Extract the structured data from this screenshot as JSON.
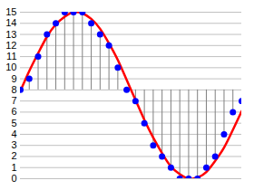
{
  "chart_data": {
    "type": "line",
    "x": [
      0,
      1,
      2,
      3,
      4,
      5,
      6,
      7,
      8,
      9,
      10,
      11,
      12,
      13,
      14,
      15,
      16,
      17,
      18,
      19,
      20,
      21,
      22,
      23,
      24,
      25
    ],
    "series": [
      {
        "type": "line",
        "color": "#ff0000",
        "values": [
          7.9,
          9.7,
          11.3,
          12.8,
          13.9,
          14.6,
          15.0,
          14.9,
          14.4,
          13.5,
          12.2,
          10.7,
          8.9,
          7.1,
          5.3,
          3.7,
          2.3,
          1.1,
          0.4,
          0.0,
          0.1,
          0.6,
          1.6,
          2.8,
          4.4,
          6.1
        ]
      },
      {
        "type": "scatter",
        "color": "#0000ff",
        "marker": "circle",
        "values": [
          8,
          9,
          11,
          13,
          14,
          15,
          15,
          15,
          14,
          13,
          12,
          10,
          8,
          7,
          5,
          3,
          2,
          1,
          0,
          0,
          0,
          1,
          2,
          4,
          6,
          7
        ]
      }
    ],
    "baseline": 8,
    "xlim": [
      0,
      25
    ],
    "ylim": [
      0,
      15
    ],
    "yticks": [
      0,
      1,
      2,
      3,
      4,
      5,
      6,
      7,
      8,
      9,
      10,
      11,
      12,
      13,
      14,
      15
    ],
    "grid": true,
    "tick_labels": "y"
  }
}
